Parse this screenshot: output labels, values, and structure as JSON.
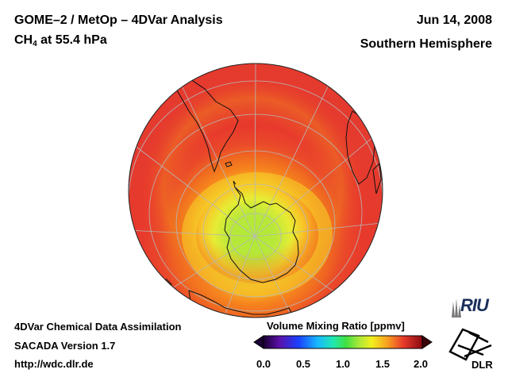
{
  "header": {
    "title_main": "GOME–2 / MetOp – 4DVar Analysis",
    "species_prefix": "CH",
    "species_subscript": "4",
    "species_suffix": " at 55.4 hPa",
    "date": "Jun 14, 2008",
    "region": "Southern Hemisphere"
  },
  "footer": {
    "line1": "4DVar Chemical Data Assimilation",
    "line2": "SACADA Version 1.7",
    "line3": "http://wdc.dlr.de"
  },
  "colorbar": {
    "title": "Volume Mixing Ratio [ppmv]",
    "ticks": [
      "0.0",
      "0.5",
      "1.0",
      "1.5",
      "2.0"
    ],
    "range": [
      0.0,
      2.0
    ]
  },
  "map": {
    "projection": "orthographic, south-pole view",
    "field": "CH4 volume mixing ratio",
    "polar_core_ppmv": 1.0,
    "outer_ring_ppmv": 1.75
  },
  "logos": {
    "riu": "RIU",
    "dlr": "DLR"
  },
  "colors": {
    "outer": "#e83a2c",
    "mid": "#f2691c",
    "ring": "#f5d020",
    "core": "#a8e83a",
    "coast": "#111111",
    "grid": "#b0b0b0"
  }
}
